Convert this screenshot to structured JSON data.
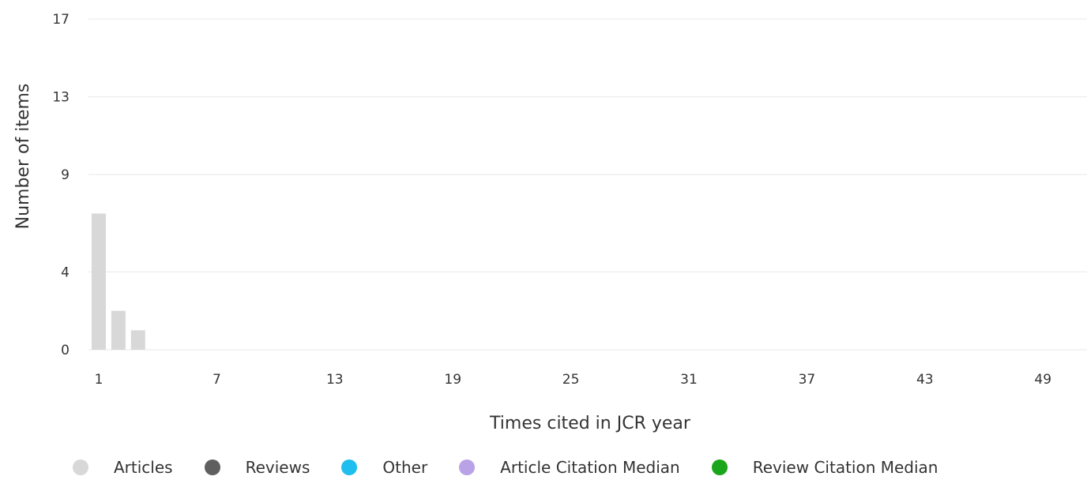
{
  "chart_data": {
    "type": "bar",
    "xlabel": "Times cited in JCR year",
    "ylabel": "Number of items",
    "x_ticks": [
      "1",
      "7",
      "13",
      "19",
      "25",
      "31",
      "37",
      "43",
      "49"
    ],
    "y_ticks": [
      "0",
      "4",
      "9",
      "13",
      "17"
    ],
    "xlim": [
      1,
      51
    ],
    "ylim": [
      0,
      17
    ],
    "grid": true,
    "legend_position": "bottom",
    "series": [
      {
        "name": "Articles",
        "color": "#d8d8d8",
        "points": [
          {
            "x": 1,
            "y": 7
          },
          {
            "x": 2,
            "y": 2
          },
          {
            "x": 3,
            "y": 1
          }
        ]
      },
      {
        "name": "Reviews",
        "color": "#5f5f5f",
        "points": []
      },
      {
        "name": "Other",
        "color": "#1ebeef",
        "points": []
      },
      {
        "name": "Article Citation Median",
        "color": "#b9a2e6",
        "points": []
      },
      {
        "name": "Review Citation Median",
        "color": "#1aa51a",
        "points": []
      }
    ]
  },
  "legend": {
    "items": [
      {
        "label": "Articles",
        "color": "#d8d8d8"
      },
      {
        "label": "Reviews",
        "color": "#5f5f5f"
      },
      {
        "label": "Other",
        "color": "#1ebeef"
      },
      {
        "label": "Article Citation Median",
        "color": "#b9a2e6"
      },
      {
        "label": "Review Citation Median",
        "color": "#1aa51a"
      }
    ]
  }
}
